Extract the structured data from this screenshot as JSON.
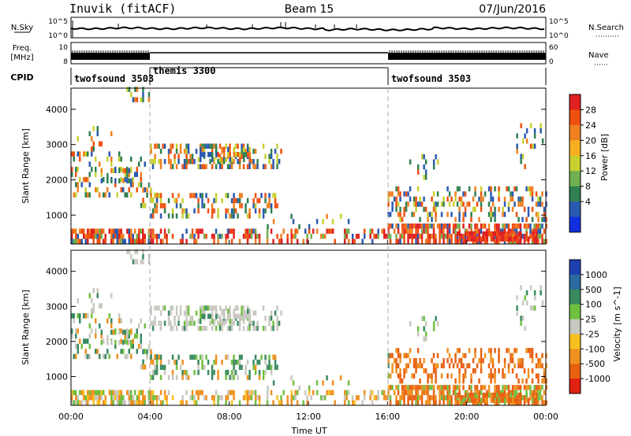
{
  "header": {
    "station": "Inuvik (fitACF)",
    "beam": "Beam 15",
    "date": "07/Jun/2016"
  },
  "status_panels": {
    "nsky_label": "N.Sky",
    "nsky_ticks": [
      "10^5",
      "10^0"
    ],
    "nsearch_label": "N.Search",
    "nsearch_ticks": [
      "10^5",
      "10^0"
    ],
    "freq_label": "Freq.",
    "freq_unit": "[MHz]",
    "freq_ticks": [
      "10",
      "8"
    ],
    "nave_label": "Nave",
    "nave_ticks": [
      "60",
      "0"
    ],
    "cpid_label": "CPID",
    "cpid_segments": [
      {
        "name": "twofsound 3503",
        "start": 0,
        "end": 4
      },
      {
        "name": "themis 3300",
        "start": 4,
        "end": 16
      },
      {
        "name": "twofsound 3503",
        "start": 16,
        "end": 24
      }
    ]
  },
  "chart_data": [
    {
      "type": "heatmap",
      "name": "power",
      "ylabel": "Slant Range [km]",
      "yticks": [
        1000,
        2000,
        3000,
        4000
      ],
      "ylim": [
        180,
        4600
      ],
      "xlim": [
        0,
        24
      ],
      "colorbar": {
        "label": "Power [dB]",
        "ticks": [
          "28",
          "24",
          "20",
          "16",
          "12",
          "8",
          "4"
        ],
        "colors": [
          "#e02020",
          "#f05010",
          "#f08020",
          "#f8b020",
          "#c8d030",
          "#70b050",
          "#308050",
          "#2a5ab0",
          "#1030e0"
        ]
      }
    },
    {
      "type": "heatmap",
      "name": "velocity",
      "ylabel": "Slant Range [km]",
      "yticks": [
        1000,
        2000,
        3000,
        4000
      ],
      "ylim": [
        180,
        4600
      ],
      "xlim": [
        0,
        24
      ],
      "xlabel": "Time UT",
      "xticks": [
        "00:00",
        "04:00",
        "08:00",
        "12:00",
        "16:00",
        "20:00",
        "00:00"
      ],
      "colorbar": {
        "label": "Velocity [m s^-1]",
        "ticks": [
          "1000",
          "500",
          "100",
          "25",
          "-25",
          "-100",
          "-500",
          "-1000"
        ],
        "colors": [
          "#1e40b0",
          "#2a6aa0",
          "#3a8a60",
          "#70c040",
          "#c8c8c0",
          "#f8c020",
          "#f09020",
          "#e86010",
          "#e02010"
        ]
      }
    }
  ]
}
